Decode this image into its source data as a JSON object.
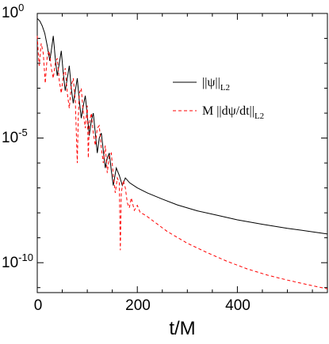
{
  "chart_data": {
    "type": "line",
    "xlabel": "t/M",
    "ylabel": "",
    "xlim": [
      0,
      580
    ],
    "ylim_log10": [
      -11.2,
      0
    ],
    "yscale": "log",
    "grid": false,
    "legend_position": "right",
    "x_ticks": [
      {
        "value": 0,
        "label": "0"
      },
      {
        "value": 200,
        "label": "200"
      },
      {
        "value": 400,
        "label": "400"
      }
    ],
    "y_ticks": [
      {
        "log10": 0,
        "base": "10",
        "exp": "0"
      },
      {
        "log10": -5,
        "base": "10",
        "exp": "-5"
      },
      {
        "log10": -10,
        "base": "10",
        "exp": "-10"
      }
    ],
    "series": [
      {
        "name": "||ψ||",
        "name_sub": "L2",
        "color": "#000000",
        "dashed": false,
        "x": [
          0,
          5,
          10,
          15,
          20,
          25,
          28,
          32,
          36,
          40,
          44,
          48,
          52,
          56,
          60,
          64,
          68,
          72,
          76,
          80,
          84,
          88,
          92,
          96,
          100,
          104,
          108,
          112,
          116,
          120,
          124,
          128,
          132,
          136,
          140,
          144,
          148,
          152,
          158,
          164,
          170,
          176,
          185,
          200,
          220,
          250,
          280,
          320,
          360,
          400,
          450,
          500,
          540,
          580
        ],
        "y_log10": [
          -0.2,
          -0.3,
          -0.5,
          -0.8,
          -1.3,
          -1.9,
          -1.5,
          -0.9,
          -1.8,
          -2.5,
          -2.0,
          -1.5,
          -2.4,
          -3.1,
          -2.6,
          -2.1,
          -3.0,
          -3.6,
          -3.1,
          -2.6,
          -3.5,
          -4.2,
          -3.7,
          -3.3,
          -4.1,
          -4.9,
          -4.3,
          -4.0,
          -4.8,
          -5.6,
          -5.0,
          -4.8,
          -5.5,
          -6.2,
          -5.8,
          -5.6,
          -6.3,
          -6.9,
          -6.2,
          -6.5,
          -6.9,
          -6.6,
          -6.8,
          -7.0,
          -7.2,
          -7.45,
          -7.68,
          -7.92,
          -8.1,
          -8.28,
          -8.46,
          -8.62,
          -8.73,
          -8.85
        ]
      },
      {
        "name": "M ||dψ/dt||",
        "name_sub": "L2",
        "color": "#ff0000",
        "dashed": true,
        "x": [
          0,
          2,
          4,
          6,
          8,
          12,
          16,
          20,
          24,
          28,
          32,
          36,
          40,
          44,
          48,
          52,
          56,
          60,
          64,
          68,
          72,
          76,
          80,
          82,
          84,
          88,
          92,
          96,
          100,
          102,
          104,
          108,
          112,
          116,
          120,
          124,
          128,
          132,
          136,
          140,
          144,
          148,
          152,
          156,
          160,
          164,
          166,
          168,
          172,
          176,
          180,
          184,
          188,
          194,
          200,
          206,
          212,
          220,
          240,
          260,
          300,
          340,
          380,
          420,
          460,
          500,
          540,
          580
        ],
        "y_log10": [
          -0.9,
          -1.6,
          -2.1,
          -1.6,
          -1.2,
          -1.6,
          -2.8,
          -1.7,
          -1.5,
          -2.2,
          -2.6,
          -2.0,
          -1.8,
          -2.7,
          -3.2,
          -2.5,
          -2.2,
          -3.2,
          -3.8,
          -2.9,
          -2.6,
          -3.5,
          -6.0,
          -4.2,
          -3.2,
          -3.0,
          -4.0,
          -4.6,
          -3.7,
          -5.8,
          -4.4,
          -4.0,
          -4.8,
          -5.3,
          -4.6,
          -4.5,
          -5.4,
          -6.0,
          -5.3,
          -6.4,
          -5.7,
          -5.6,
          -6.5,
          -7.2,
          -6.6,
          -6.8,
          -9.5,
          -7.2,
          -6.7,
          -7.0,
          -7.6,
          -7.8,
          -7.4,
          -7.9,
          -7.7,
          -8.0,
          -8.05,
          -8.15,
          -8.45,
          -8.75,
          -9.22,
          -9.6,
          -9.95,
          -10.25,
          -10.5,
          -10.7,
          -10.88,
          -11.05
        ]
      }
    ]
  }
}
